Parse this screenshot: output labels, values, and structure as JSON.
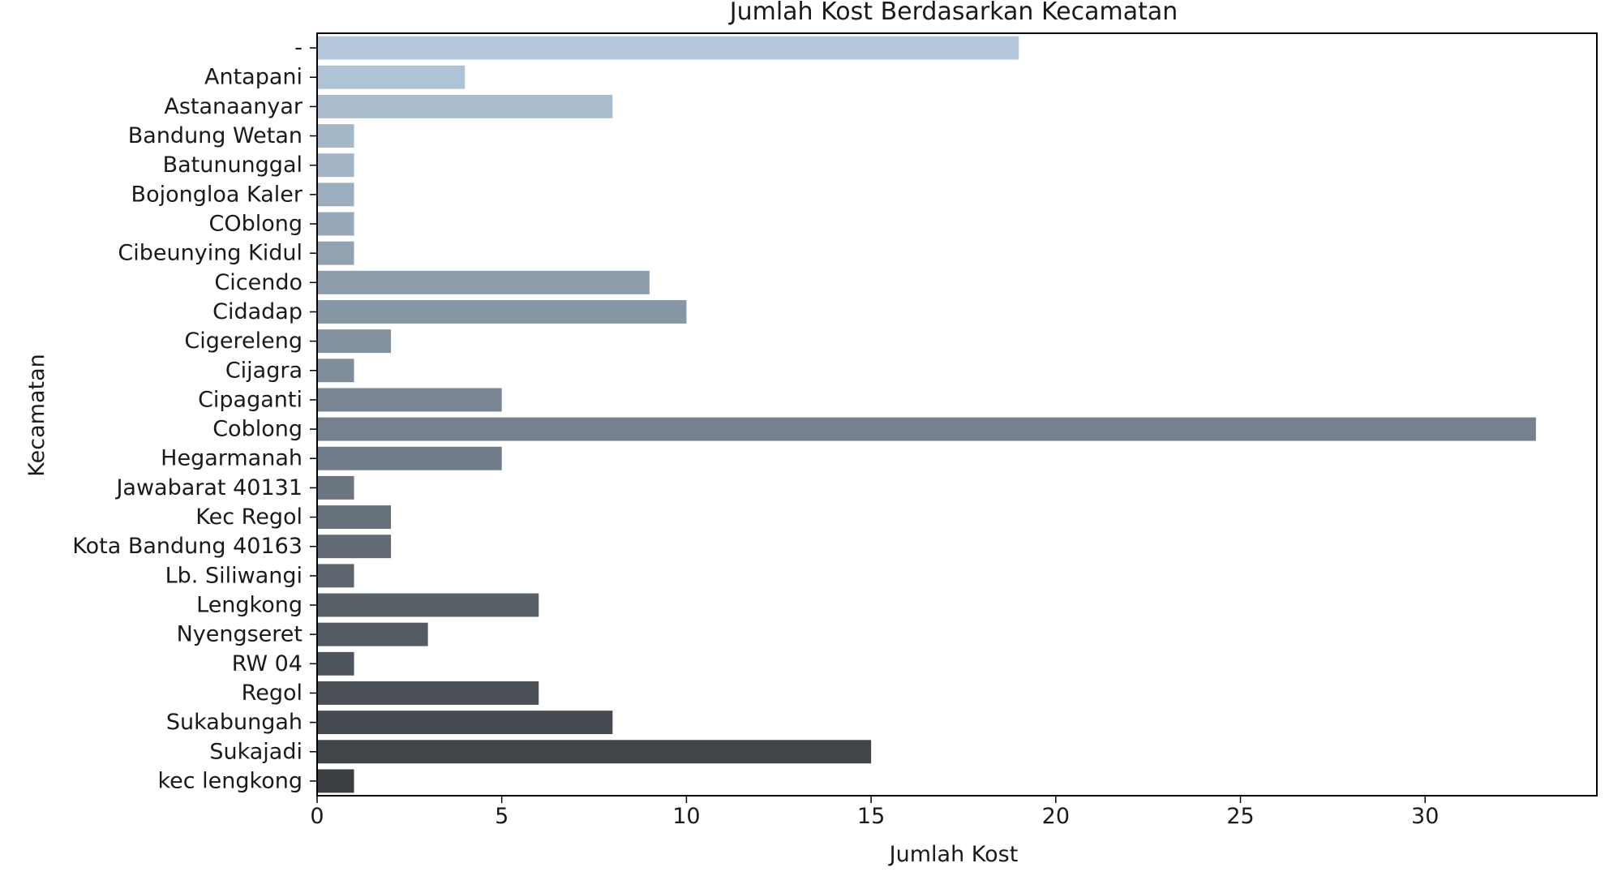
{
  "chart_data": {
    "type": "bar",
    "orientation": "horizontal",
    "title": "Jumlah Kost Berdasarkan Kecamatan",
    "xlabel": "Jumlah Kost",
    "ylabel": "Kecamatan",
    "xlim": [
      0,
      34.65
    ],
    "xticks": [
      0,
      5,
      10,
      15,
      20,
      25,
      30
    ],
    "grid": false,
    "legend": "none",
    "palette": "Blues_d (light steel blue to dark slate, top to bottom)",
    "colors": [
      "#b4c9dc",
      "#3b3f44"
    ],
    "categories": [
      "-",
      "Antapani",
      "Astanaanyar",
      "Bandung Wetan",
      "Batununggal",
      "Bojongloa Kaler",
      "COblong",
      "Cibeunying Kidul",
      "Cicendo",
      "Cidadap",
      "Cigereleng",
      "Cijagra",
      "Cipaganti",
      "Coblong",
      "Hegarmanah",
      "Jawabarat 40131",
      "Kec Regol",
      "Kota Bandung 40163",
      "Lb. Siliwangi",
      "Lengkong",
      "Nyengseret",
      "RW 04",
      "Regol",
      "Sukabungah",
      "Sukajadi",
      "kec lengkong"
    ],
    "values": [
      19,
      4,
      8,
      1,
      1,
      1,
      1,
      1,
      9,
      10,
      2,
      1,
      5,
      33,
      5,
      1,
      2,
      2,
      1,
      6,
      3,
      1,
      6,
      8,
      15,
      1
    ]
  }
}
